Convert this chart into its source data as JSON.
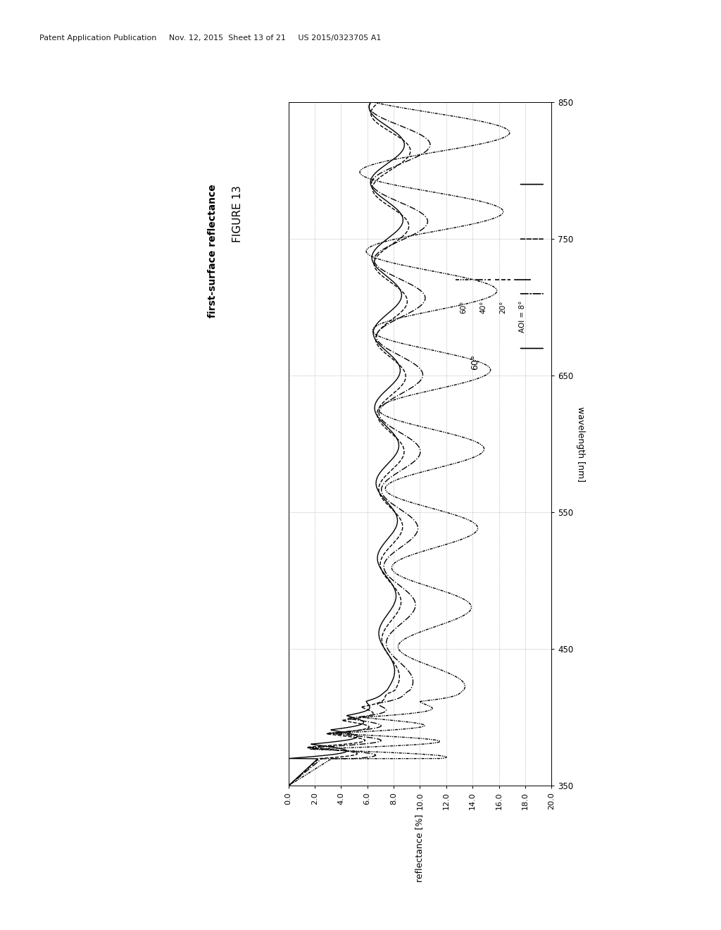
{
  "header": "Patent Application Publication     Nov. 12, 2015  Sheet 13 of 21     US 2015/0323705 A1",
  "fig_label": "FIGURE 13",
  "chart_title": "first-surface reflectance",
  "xlabel_wl": "wavelength [nm]",
  "ylabel_ref": "reflectance [%]",
  "wl_min": 350,
  "wl_max": 850,
  "ref_min": 0.0,
  "ref_max": 20.0,
  "wl_ticks": [
    350,
    450,
    550,
    650,
    750,
    850
  ],
  "ref_ticks": [
    0.0,
    2.0,
    4.0,
    6.0,
    8.0,
    10.0,
    12.0,
    14.0,
    16.0,
    18.0,
    20.0
  ],
  "legend_labels": [
    "AOI = 8°",
    "20°",
    "40°",
    "60°"
  ],
  "annotation": "60°",
  "bg_color": "#ffffff",
  "line_color": "#000000"
}
